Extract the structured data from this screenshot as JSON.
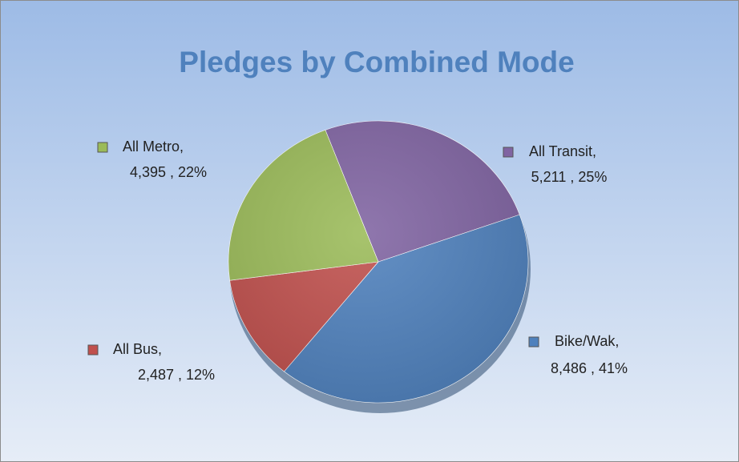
{
  "chart_data": {
    "type": "pie",
    "title": "Pledges by Combined Mode",
    "categories": [
      "All Transit,",
      "Bike/Wak,",
      "All Bus,",
      "All Metro,"
    ],
    "values": [
      5211,
      8486,
      2487,
      4395
    ],
    "value_labels": [
      "5,211 , 25%",
      "8,486 , 41%",
      "2,487 , 12%",
      "4,395 , 22%"
    ],
    "colors": [
      "#8064a2",
      "#4f81bd",
      "#c0504d",
      "#9bbb59"
    ]
  }
}
